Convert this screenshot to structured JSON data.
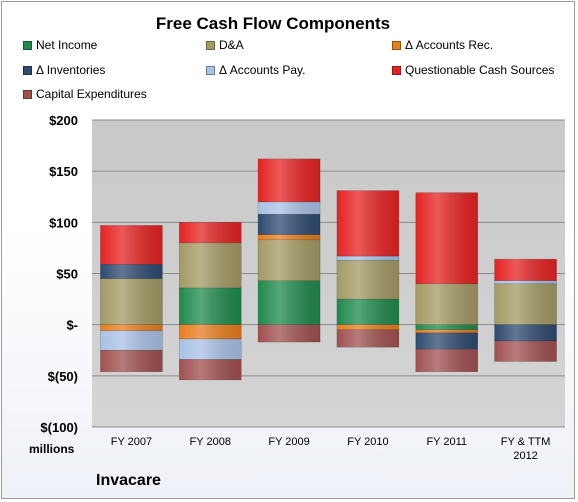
{
  "chart_data": {
    "type": "bar",
    "stacked": true,
    "title": "Free Cash Flow Components",
    "units_label": "millions",
    "company": "Invacare",
    "categories": [
      "FY 2007",
      "FY 2008",
      "FY 2009",
      "FY 2010",
      "FY 2011",
      "FY & TTM 2012"
    ],
    "ylim": [
      -100,
      200
    ],
    "yticks": [
      200,
      150,
      100,
      50,
      0,
      -50,
      -100
    ],
    "ytick_labels": [
      "$200",
      "$150",
      "$100",
      "$50",
      "$-",
      "$(50)",
      "$(100)"
    ],
    "grid": true,
    "legend_position": "top",
    "series": [
      {
        "name": "Net Income",
        "color": "#1f8a4c",
        "values": [
          0,
          36,
          43,
          25,
          -5,
          0
        ]
      },
      {
        "name": "D&A",
        "color": "#a39a64",
        "values": [
          45,
          44,
          40,
          38,
          40,
          40
        ]
      },
      {
        "name": "Δ Accounts Rec.",
        "color": "#e87d1e",
        "values": [
          -6,
          -14,
          5,
          -5,
          -3,
          0
        ]
      },
      {
        "name": "Δ Inventories",
        "color": "#2e4a70",
        "values": [
          14,
          0,
          20,
          0,
          -16,
          -16
        ]
      },
      {
        "name": "Δ Accounts Pay.",
        "color": "#a9c1e6",
        "values": [
          -19,
          -20,
          12,
          4,
          0,
          3
        ]
      },
      {
        "name": "Questionable Cash Sources",
        "color": "#e52222",
        "values": [
          38,
          20,
          42,
          64,
          89,
          21
        ]
      },
      {
        "name": "Capital Expenditures",
        "color": "#a05050",
        "values": [
          -21,
          -20,
          -17,
          -17,
          -22,
          -20
        ]
      }
    ]
  }
}
